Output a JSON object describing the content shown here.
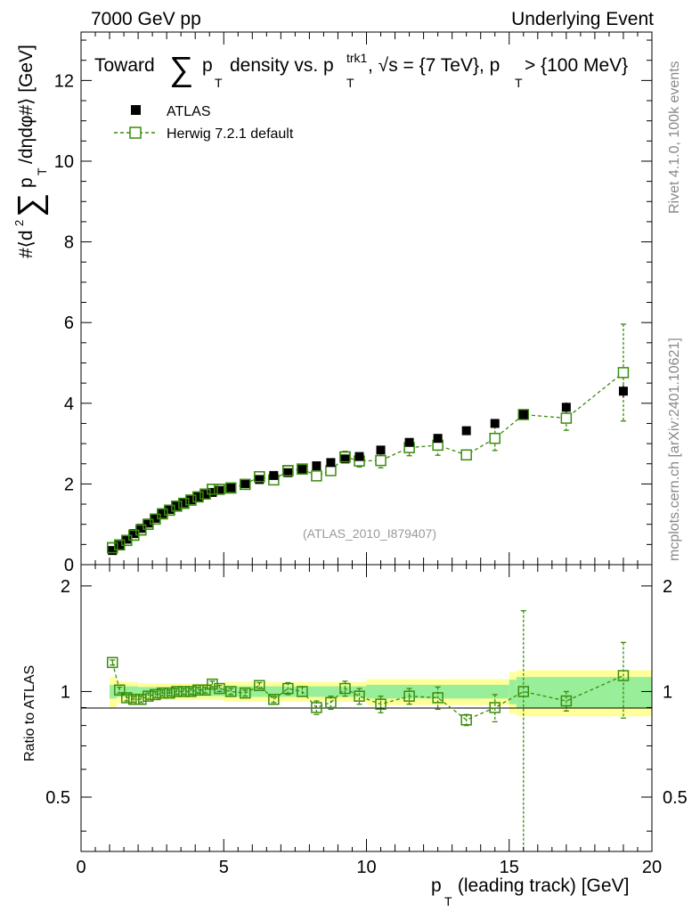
{
  "header": {
    "left": "7000 GeV pp",
    "right": "Underlying Event"
  },
  "side": {
    "rivet": "Rivet 4.1.0,  100k events",
    "mcplots": "mcplots.cern.ch [arXiv:2401.10621]"
  },
  "watermark": "(ATLAS_2010_I879407)",
  "colors": {
    "data": "#000000",
    "mc": "#3a8c0c",
    "band_inner": "#99ee99",
    "band_outer": "#ffff99"
  },
  "chart_data": [
    {
      "type": "scatter",
      "panel": "main",
      "title": "Toward ∑ pT density vs. pT^trk1, √s = {7 TeV}, pT > {100 MeV}",
      "title_parts": {
        "a": "Toward",
        "sum": "∑",
        "p": "p",
        "sub_t": "T",
        "b": "density vs. p",
        "sup": "trk1",
        "c": ", √s = {7 TeV}, p",
        "d": " > {100 MeV}"
      },
      "ylabel": "#⟨d² ∑ pT /dηdφ#⟩ [GeV]",
      "ylabel_parts": {
        "a": "#⟨d",
        "two": "2",
        "sum": "∑",
        "p": "p",
        "t": "T",
        "b": "/dηdφ#⟩ [GeV]"
      },
      "xlabel": "",
      "xlim": [
        0,
        20
      ],
      "ylim": [
        0,
        13.2
      ],
      "yticks": [
        0,
        2,
        4,
        6,
        8,
        10,
        12
      ],
      "legend_position": "top-left",
      "series": [
        {
          "name": "ATLAS",
          "marker": "filled-square",
          "x": [
            1.1,
            1.35,
            1.6,
            1.85,
            2.1,
            2.35,
            2.6,
            2.85,
            3.1,
            3.35,
            3.6,
            3.85,
            4.1,
            4.35,
            4.6,
            4.85,
            5.25,
            5.75,
            6.25,
            6.75,
            7.25,
            7.75,
            8.25,
            8.75,
            9.25,
            9.75,
            10.5,
            11.5,
            12.5,
            13.5,
            14.5,
            15.5,
            17.0,
            19.0
          ],
          "y": [
            0.35,
            0.48,
            0.63,
            0.77,
            0.9,
            1.03,
            1.15,
            1.27,
            1.37,
            1.46,
            1.53,
            1.61,
            1.68,
            1.74,
            1.79,
            1.84,
            1.91,
            2.01,
            2.11,
            2.21,
            2.28,
            2.36,
            2.45,
            2.53,
            2.62,
            2.68,
            2.84,
            3.03,
            3.13,
            3.32,
            3.5,
            3.72,
            3.9,
            4.3
          ],
          "yerr": [
            0.02,
            0.02,
            0.02,
            0.02,
            0.02,
            0.02,
            0.02,
            0.02,
            0.02,
            0.02,
            0.02,
            0.02,
            0.02,
            0.02,
            0.02,
            0.02,
            0.02,
            0.02,
            0.03,
            0.03,
            0.03,
            0.03,
            0.04,
            0.04,
            0.04,
            0.05,
            0.05,
            0.06,
            0.07,
            0.08,
            0.09,
            0.1,
            0.12,
            0.15
          ]
        },
        {
          "name": "Herwig 7.2.1 default",
          "marker": "open-square-dashed",
          "x": [
            1.1,
            1.35,
            1.6,
            1.85,
            2.1,
            2.35,
            2.6,
            2.85,
            3.1,
            3.35,
            3.6,
            3.85,
            4.1,
            4.35,
            4.6,
            4.85,
            5.25,
            5.75,
            6.25,
            6.75,
            7.25,
            7.75,
            8.25,
            8.75,
            9.25,
            9.75,
            10.5,
            11.5,
            12.5,
            13.5,
            14.5,
            15.5,
            17.0,
            19.0
          ],
          "y": [
            0.42,
            0.49,
            0.6,
            0.73,
            0.86,
            1.0,
            1.13,
            1.26,
            1.35,
            1.45,
            1.52,
            1.6,
            1.68,
            1.75,
            1.87,
            1.87,
            1.9,
            1.99,
            2.18,
            2.1,
            2.33,
            2.37,
            2.2,
            2.33,
            2.67,
            2.57,
            2.58,
            2.9,
            2.96,
            2.72,
            3.13,
            3.72,
            3.63,
            4.76
          ],
          "yerr": [
            0.02,
            0.02,
            0.02,
            0.02,
            0.02,
            0.02,
            0.02,
            0.02,
            0.02,
            0.02,
            0.02,
            0.02,
            0.02,
            0.02,
            0.03,
            0.03,
            0.03,
            0.04,
            0.05,
            0.06,
            0.08,
            0.09,
            0.1,
            0.12,
            0.14,
            0.15,
            0.18,
            0.2,
            0.25,
            0.0,
            0.3,
            0.0,
            0.3,
            1.2
          ],
          "mask_y_main_at_or_below": 2.8
        }
      ]
    },
    {
      "type": "scatter",
      "panel": "ratio",
      "ylabel": "Ratio to ATLAS",
      "xlabel": "pT (leading track) [GeV]",
      "xlabel_parts": {
        "p": "p",
        "t": "T",
        "rest": " (leading track) [GeV]"
      },
      "xlim": [
        0,
        20
      ],
      "ylim": [
        0.35,
        2.3
      ],
      "yticks": [
        0.5,
        1,
        2
      ],
      "xticks": [
        0,
        5,
        10,
        15,
        20
      ],
      "bands": {
        "edges": [
          1.0,
          1.25,
          1.5,
          2.0,
          4.5,
          5.0,
          10.0,
          15.0,
          15.25,
          20.0
        ],
        "inner": [
          0.045,
          0.035,
          0.035,
          0.03,
          0.03,
          0.035,
          0.045,
          0.08,
          0.1
        ],
        "outer": [
          0.1,
          0.07,
          0.065,
          0.055,
          0.055,
          0.065,
          0.085,
          0.135,
          0.15
        ]
      },
      "series": [
        {
          "name": "Herwig 7.2.1 default",
          "x": [
            1.1,
            1.35,
            1.6,
            1.85,
            2.1,
            2.35,
            2.6,
            2.85,
            3.1,
            3.35,
            3.6,
            3.85,
            4.1,
            4.35,
            4.6,
            4.85,
            5.25,
            5.75,
            6.25,
            6.75,
            7.25,
            7.75,
            8.25,
            8.75,
            9.25,
            9.75,
            10.5,
            11.5,
            12.5,
            13.5,
            14.5,
            15.5,
            17.0,
            19.0
          ],
          "y": [
            1.21,
            1.01,
            0.96,
            0.95,
            0.95,
            0.97,
            0.98,
            0.99,
            0.99,
            1.0,
            1.0,
            1.0,
            1.01,
            1.01,
            1.05,
            1.02,
            1.0,
            0.99,
            1.04,
            0.95,
            1.02,
            1.0,
            0.9,
            0.93,
            1.02,
            0.97,
            0.92,
            0.97,
            0.96,
            0.83,
            0.9,
            1.0,
            0.94,
            1.11
          ],
          "yerr": [
            0.02,
            0.02,
            0.02,
            0.02,
            0.02,
            0.02,
            0.02,
            0.02,
            0.02,
            0.02,
            0.02,
            0.02,
            0.02,
            0.02,
            0.02,
            0.02,
            0.02,
            0.02,
            0.02,
            0.02,
            0.04,
            0.03,
            0.04,
            0.04,
            0.05,
            0.05,
            0.05,
            0.05,
            0.07,
            0.03,
            0.08,
            0.7,
            0.06,
            0.27
          ]
        }
      ]
    }
  ]
}
